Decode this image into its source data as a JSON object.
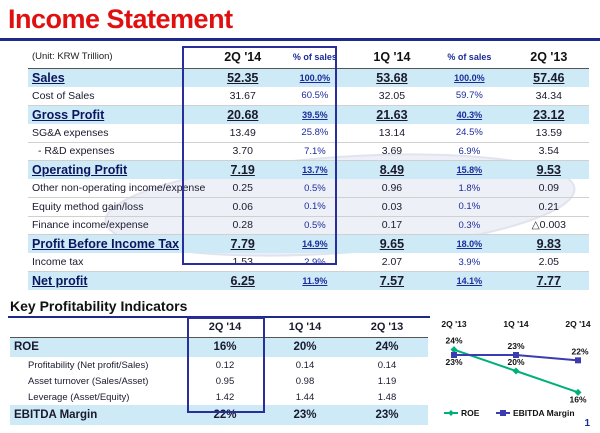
{
  "title": "Income Statement",
  "income_statement": {
    "unit": "(Unit: KRW Trillion)",
    "columns": [
      "2Q '14",
      "% of sales",
      "1Q '14",
      "% of sales",
      "2Q '13"
    ],
    "rows": [
      {
        "label": "Sales",
        "type": "bold",
        "values": [
          "52.35",
          "100.0%",
          "53.68",
          "100.0%",
          "57.46"
        ]
      },
      {
        "label": "Cost of Sales",
        "type": "sub",
        "values": [
          "31.67",
          "60.5%",
          "32.05",
          "59.7%",
          "34.34"
        ]
      },
      {
        "label": "Gross Profit",
        "type": "bold",
        "values": [
          "20.68",
          "39.5%",
          "21.63",
          "40.3%",
          "23.12"
        ]
      },
      {
        "label": "SG&A expenses",
        "type": "sub",
        "values": [
          "13.49",
          "25.8%",
          "13.14",
          "24.5%",
          "13.59"
        ]
      },
      {
        "label": "- R&D expenses",
        "type": "sub",
        "values": [
          "3.70",
          "7.1%",
          "3.69",
          "6.9%",
          "3.54"
        ]
      },
      {
        "label": "Operating Profit",
        "type": "bold",
        "values": [
          "7.19",
          "13.7%",
          "8.49",
          "15.8%",
          "9.53"
        ]
      },
      {
        "label": "Other non-operating income/expense",
        "type": "sub",
        "values": [
          "0.25",
          "0.5%",
          "0.96",
          "1.8%",
          "0.09"
        ]
      },
      {
        "label": "Equity method gain/loss",
        "type": "sub",
        "values": [
          "0.06",
          "0.1%",
          "0.03",
          "0.1%",
          "0.21"
        ]
      },
      {
        "label": "Finance income/expense",
        "type": "sub",
        "values": [
          "0.28",
          "0.5%",
          "0.17",
          "0.3%",
          "△0.003"
        ]
      },
      {
        "label": "Profit Before Income Tax",
        "type": "bold",
        "values": [
          "7.79",
          "14.9%",
          "9.65",
          "18.0%",
          "9.83"
        ]
      },
      {
        "label": "Income tax",
        "type": "sub",
        "values": [
          "1.53",
          "2.9%",
          "2.07",
          "3.9%",
          "2.05"
        ]
      },
      {
        "label": "Net profit",
        "type": "bold",
        "values": [
          "6.25",
          "11.9%",
          "7.57",
          "14.1%",
          "7.77"
        ]
      }
    ]
  },
  "kpi": {
    "title": "Key Profitability Indicators",
    "columns": [
      "2Q '14",
      "1Q '14",
      "2Q '13"
    ],
    "rows": [
      {
        "label": "ROE",
        "type": "bold",
        "values": [
          "16%",
          "20%",
          "24%"
        ]
      },
      {
        "label": "Profitability (Net profit/Sales)",
        "type": "sub",
        "values": [
          "0.12",
          "0.14",
          "0.14"
        ]
      },
      {
        "label": "Asset turnover (Sales/Asset)",
        "type": "sub",
        "values": [
          "0.95",
          "0.98",
          "1.19"
        ]
      },
      {
        "label": "Leverage (Asset/Equity)",
        "type": "sub",
        "values": [
          "1.42",
          "1.44",
          "1.48"
        ]
      },
      {
        "label": "EBITDA Margin",
        "type": "bold",
        "values": [
          "22%",
          "23%",
          "23%"
        ]
      }
    ]
  },
  "chart_data": {
    "type": "line",
    "categories": [
      "2Q '13",
      "1Q '14",
      "2Q '14"
    ],
    "series": [
      {
        "name": "ROE",
        "values": [
          24,
          20,
          16
        ],
        "labels": [
          "24%",
          "20%",
          "16%"
        ],
        "color": "#00b07a"
      },
      {
        "name": "EBITDA Margin",
        "values": [
          23,
          23,
          22
        ],
        "labels": [
          "23%",
          "23%",
          "22%"
        ],
        "color": "#3a3cb0"
      }
    ],
    "ylim": [
      14,
      26
    ],
    "grid": false,
    "legend_placement": "bottom"
  },
  "colors": {
    "title": "#e01010",
    "rule": "#1e2a8a",
    "highlight": "#cdeaf6",
    "box": "#2a2e9a"
  },
  "page_number": "1"
}
